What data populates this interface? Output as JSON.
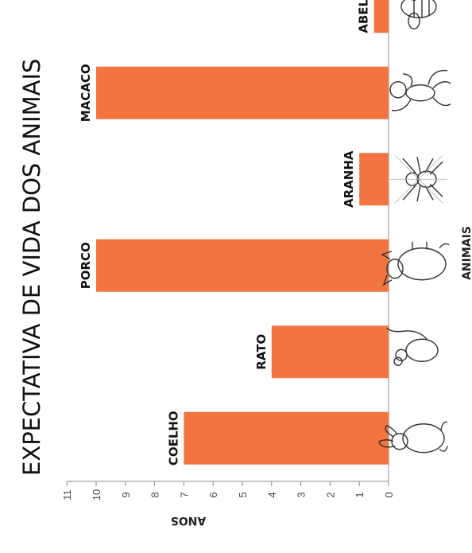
{
  "chart_data": {
    "type": "bar",
    "title": "EXPECTATIVA DE VIDA DOS ANIMAIS",
    "xlabel": "ANIMAIS",
    "ylabel": "ANOS",
    "categories": [
      "COELHO",
      "RATO",
      "PORCO",
      "ARANHA",
      "MACACO",
      "ABELHA"
    ],
    "values": [
      7,
      4,
      10,
      1,
      10,
      0.5
    ],
    "ylim": [
      0,
      11
    ],
    "yticks": [
      "0",
      "1",
      "2",
      "3",
      "4",
      "5",
      "6",
      "7",
      "8",
      "9",
      "10",
      "11"
    ],
    "grid": false,
    "orientation": "rotated 90° counter-clockwise",
    "bar_color": "#f27441",
    "icons": [
      "rabbit-icon",
      "mouse-icon",
      "pig-icon",
      "spider-icon",
      "monkey-icon",
      "bee-icon"
    ]
  }
}
